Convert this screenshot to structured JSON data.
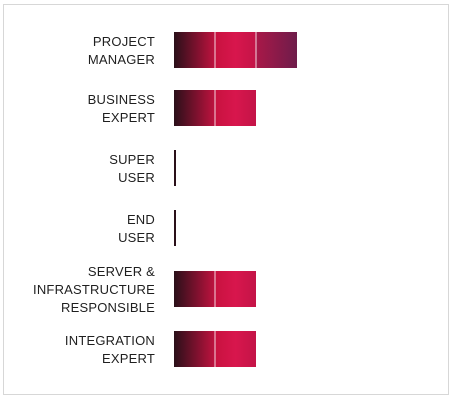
{
  "chart_data": {
    "type": "bar",
    "orientation": "horizontal",
    "stacked": true,
    "categories": [
      [
        "PROJECT",
        "MANAGER"
      ],
      [
        "BUSINESS",
        "EXPERT"
      ],
      [
        "SUPER",
        "USER"
      ],
      [
        "END",
        "USER"
      ],
      [
        "SERVER &",
        "INFRASTRUCTURE",
        "RESPONSIBLE"
      ],
      [
        "INTEGRATION",
        "EXPERT"
      ]
    ],
    "values": [
      3,
      2,
      0,
      0,
      2,
      2
    ],
    "segment_max": 3,
    "grid": false,
    "legend": "none",
    "colors": {
      "dark": "#2a1019",
      "mid": "#d2144a",
      "light": "#7a1a4c",
      "separator": "#f2d6e0"
    }
  }
}
